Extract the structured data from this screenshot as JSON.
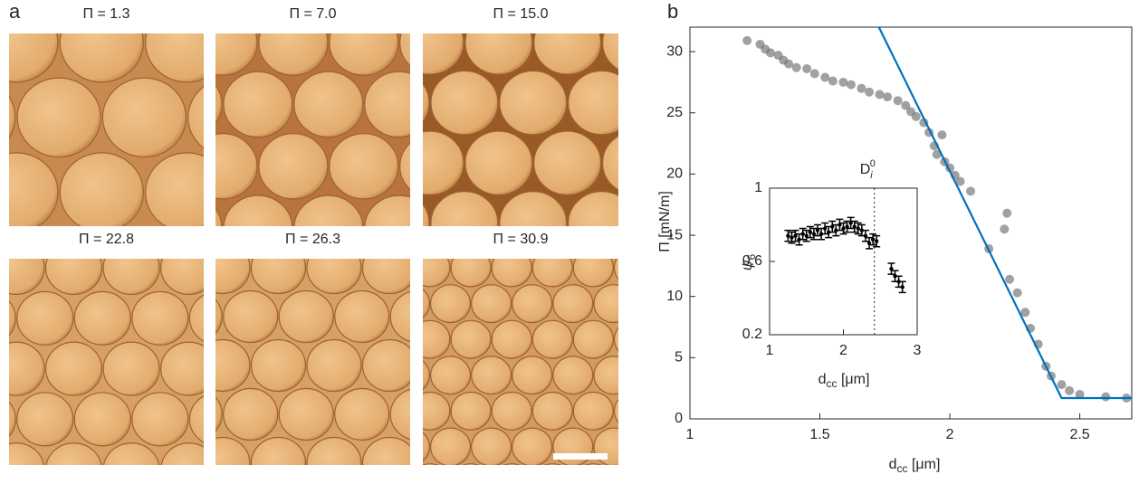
{
  "panel_a": {
    "label": "a",
    "images": [
      {
        "title": "Π = 1.3"
      },
      {
        "title": "Π = 7.0"
      },
      {
        "title": "Π = 15.0"
      },
      {
        "title": "Π = 22.8"
      },
      {
        "title": "Π = 26.3"
      },
      {
        "title": "Π = 30.9"
      }
    ]
  },
  "panel_b": {
    "label": "b"
  },
  "chart_data": [
    {
      "type": "scatter",
      "xlim": [
        1,
        2.7
      ],
      "ylim": [
        0,
        32
      ],
      "xticks": [
        1,
        1.5,
        2,
        2.5
      ],
      "yticks": [
        0,
        5,
        10,
        15,
        20,
        25,
        30
      ],
      "xlabel": {
        "base": "d",
        "sub": "cc",
        "rest": " [μm]"
      },
      "ylabel": "Π [mN/m]",
      "series": [
        {
          "type": "scatter",
          "color": "#6e6e6e",
          "x": [
            1.22,
            1.27,
            1.29,
            1.31,
            1.34,
            1.36,
            1.38,
            1.41,
            1.45,
            1.48,
            1.52,
            1.55,
            1.59,
            1.62,
            1.66,
            1.69,
            1.73,
            1.76,
            1.8,
            1.83,
            1.85,
            1.87,
            1.9,
            1.92,
            1.97,
            1.94,
            1.95,
            1.98,
            2.0,
            2.02,
            2.04,
            2.08,
            2.22,
            2.21,
            2.15,
            2.23,
            2.26,
            2.29,
            2.31,
            2.34,
            2.37,
            2.39,
            2.43,
            2.46,
            2.5,
            2.6,
            2.68
          ],
          "values": [
            30.9,
            30.6,
            30.2,
            29.9,
            29.7,
            29.3,
            29.0,
            28.7,
            28.6,
            28.2,
            27.9,
            27.6,
            27.5,
            27.3,
            27.0,
            26.7,
            26.5,
            26.3,
            26.0,
            25.6,
            25.1,
            24.7,
            24.2,
            23.4,
            23.2,
            22.3,
            21.6,
            21.0,
            20.5,
            19.9,
            19.4,
            18.6,
            16.8,
            15.5,
            13.9,
            11.4,
            10.3,
            8.7,
            7.4,
            6.1,
            4.3,
            3.5,
            2.8,
            2.3,
            2.0,
            1.8,
            1.7
          ]
        },
        {
          "type": "line",
          "color": "#0072bd",
          "x": [
            1.727,
            2.43,
            2.7
          ],
          "values": [
            32,
            1.7,
            1.7
          ]
        }
      ]
    },
    {
      "type": "errorbar",
      "xlim": [
        1,
        3
      ],
      "ylim": [
        0.2,
        1
      ],
      "xticks": [
        1,
        2,
        3
      ],
      "yticks": [
        0.2,
        0.6,
        1
      ],
      "xlabel": {
        "base": "d",
        "sub": "cc",
        "rest": " [μm]"
      },
      "ylabel": {
        "base": "ψ",
        "sub": "6"
      },
      "vline": 2.42,
      "vline_label": {
        "base": "D",
        "sub": "i",
        "sup": "0"
      },
      "series": [
        {
          "color": "#000000",
          "x": [
            1.25,
            1.3,
            1.35,
            1.4,
            1.45,
            1.5,
            1.55,
            1.6,
            1.65,
            1.7,
            1.75,
            1.8,
            1.85,
            1.9,
            1.95,
            2.0,
            2.05,
            2.1,
            2.15,
            2.2,
            2.25,
            2.3,
            2.35,
            2.4,
            2.45,
            2.65,
            2.7,
            2.75,
            2.8
          ],
          "values": [
            0.74,
            0.73,
            0.74,
            0.72,
            0.75,
            0.74,
            0.76,
            0.75,
            0.77,
            0.75,
            0.78,
            0.76,
            0.79,
            0.77,
            0.8,
            0.78,
            0.79,
            0.81,
            0.79,
            0.78,
            0.77,
            0.74,
            0.7,
            0.72,
            0.71,
            0.56,
            0.52,
            0.49,
            0.46
          ],
          "errors": [
            0.03,
            0.03,
            0.03,
            0.03,
            0.03,
            0.03,
            0.03,
            0.03,
            0.03,
            0.03,
            0.03,
            0.03,
            0.03,
            0.03,
            0.03,
            0.03,
            0.03,
            0.03,
            0.03,
            0.03,
            0.03,
            0.03,
            0.03,
            0.03,
            0.03,
            0.03,
            0.03,
            0.03,
            0.03
          ]
        }
      ]
    }
  ]
}
